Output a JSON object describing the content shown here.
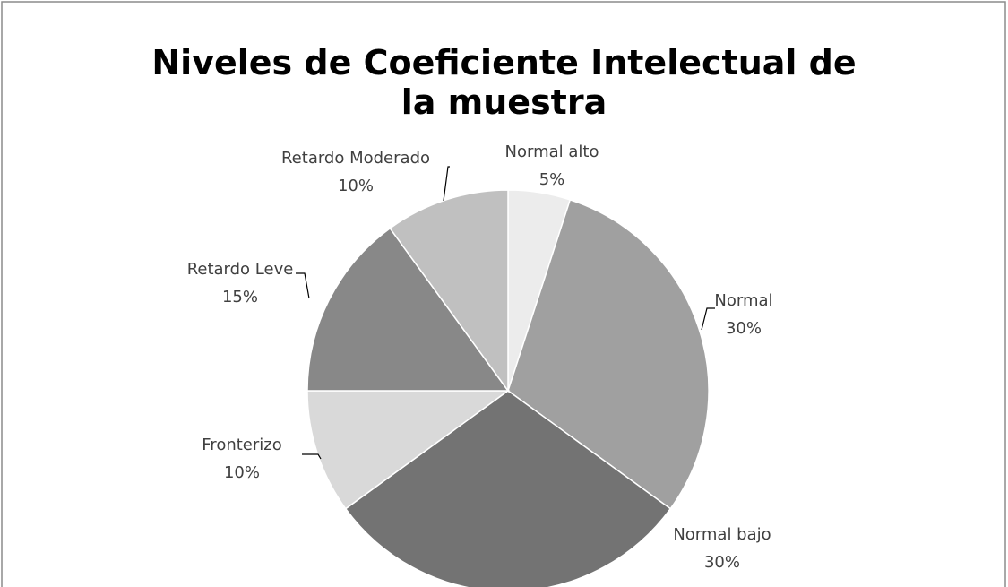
{
  "chart_data": {
    "type": "pie",
    "title": "Niveles de Coeficiente Intelectual de la muestra",
    "categories": [
      "Normal alto",
      "Normal",
      "Normal bajo",
      "Fronterizo",
      "Retardo Leve",
      "Retardo Moderado"
    ],
    "values": [
      5,
      30,
      30,
      10,
      15,
      10
    ],
    "value_labels": [
      "5%",
      "30%",
      "30%",
      "10%",
      "15%",
      "10%"
    ],
    "colors": [
      "#ececec",
      "#a0a0a0",
      "#737373",
      "#d9d9d9",
      "#888888",
      "#c0c0c0"
    ]
  }
}
